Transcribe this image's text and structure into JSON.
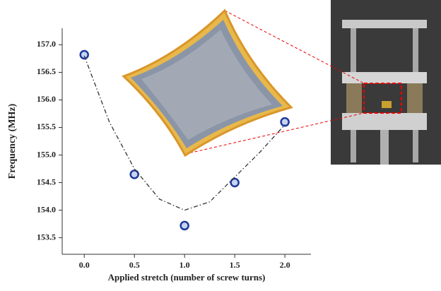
{
  "chart_data": {
    "type": "scatter",
    "xlabel": "Applied stretch (number of screw turns)",
    "ylabel": "Frequency (MHz)",
    "xlim": [
      -0.22,
      2.26
    ],
    "ylim": [
      153.2,
      157.3
    ],
    "xticks": [
      {
        "value": 0,
        "label": "0.0"
      },
      0.5,
      {
        "value": 1,
        "label": "1.0"
      },
      1.5,
      {
        "value": 2,
        "label": "2.0"
      }
    ],
    "yticks": [
      {
        "value": 153.5,
        "label": "153.5"
      },
      {
        "value": 154,
        "label": "154.0"
      },
      154.5,
      {
        "value": 155,
        "label": "155.0"
      },
      155.5,
      {
        "value": 156,
        "label": "156.0"
      },
      156.5,
      {
        "value": 157,
        "label": "157.0"
      }
    ],
    "series": [
      {
        "style": "marker",
        "color": "#1d3a9c",
        "x": [
          0,
          0.5,
          1,
          1.5,
          2
        ],
        "values": [
          156.82,
          154.65,
          153.72,
          154.5,
          155.6
        ]
      },
      {
        "style": "dash-dot",
        "color": "#333333",
        "x": [
          0,
          0.25,
          0.5,
          0.75,
          1,
          1.25,
          1.5,
          1.75,
          2
        ],
        "values": [
          156.8,
          155.6,
          154.75,
          154.2,
          154.0,
          154.15,
          154.6,
          155.05,
          155.55
        ]
      }
    ]
  }
}
